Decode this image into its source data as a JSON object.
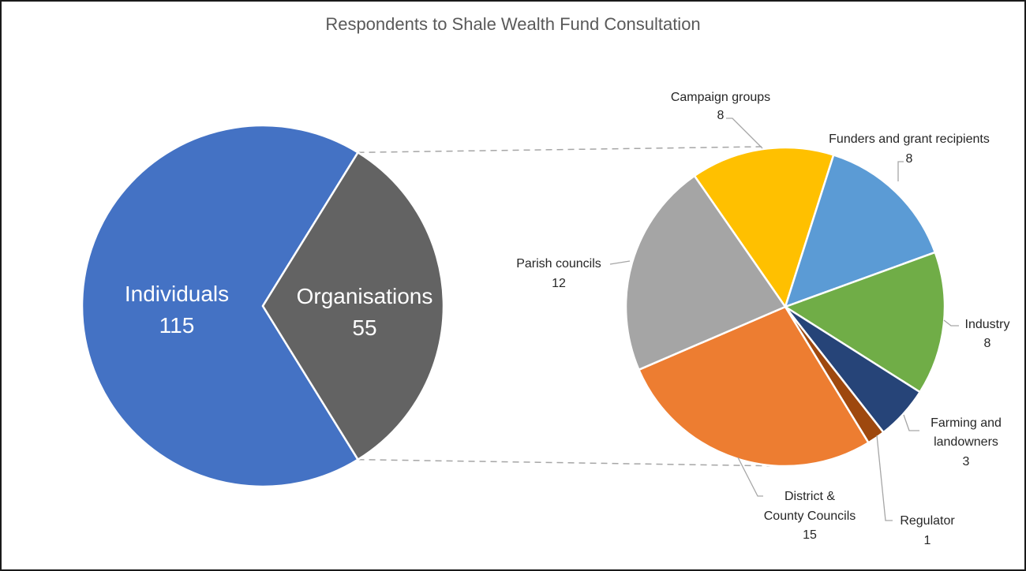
{
  "chart_data": {
    "type": "pie",
    "subtype": "pie-of-pie",
    "title": "Respondents to Shale Wealth Fund Consultation",
    "primary": {
      "categories": [
        "Individuals",
        "Organisations"
      ],
      "values": [
        115,
        55
      ],
      "colors": [
        "#4472C4",
        "#636363"
      ]
    },
    "secondary": {
      "parent": "Organisations",
      "categories": [
        "Campaign groups",
        "Funders and grant recipients",
        "Industry",
        "Farming and landowners",
        "Regulator",
        "District & County Councils",
        "Parish councils"
      ],
      "values": [
        8,
        8,
        8,
        3,
        1,
        15,
        12
      ],
      "colors": [
        "#FFC000",
        "#5B9BD5",
        "#70AD47",
        "#264478",
        "#9E480E",
        "#ED7D31",
        "#A5A5A5"
      ]
    },
    "legend": "none",
    "data_labels": "category name and value"
  },
  "labels": {
    "individuals": {
      "name": "Individuals",
      "value": "115"
    },
    "organisations": {
      "name": "Organisations",
      "value": "55"
    },
    "campaign": {
      "name": "Campaign groups",
      "value": "8"
    },
    "funders": {
      "name": "Funders and grant recipients",
      "value": "8"
    },
    "industry": {
      "name": "Industry",
      "value": "8"
    },
    "farming": {
      "line1": "Farming and",
      "line2": "landowners",
      "value": "3"
    },
    "regulator": {
      "name": "Regulator",
      "value": "1"
    },
    "district": {
      "line1": "District &",
      "line2": "County Councils",
      "value": "15"
    },
    "parish": {
      "name": "Parish councils",
      "value": "12"
    }
  }
}
